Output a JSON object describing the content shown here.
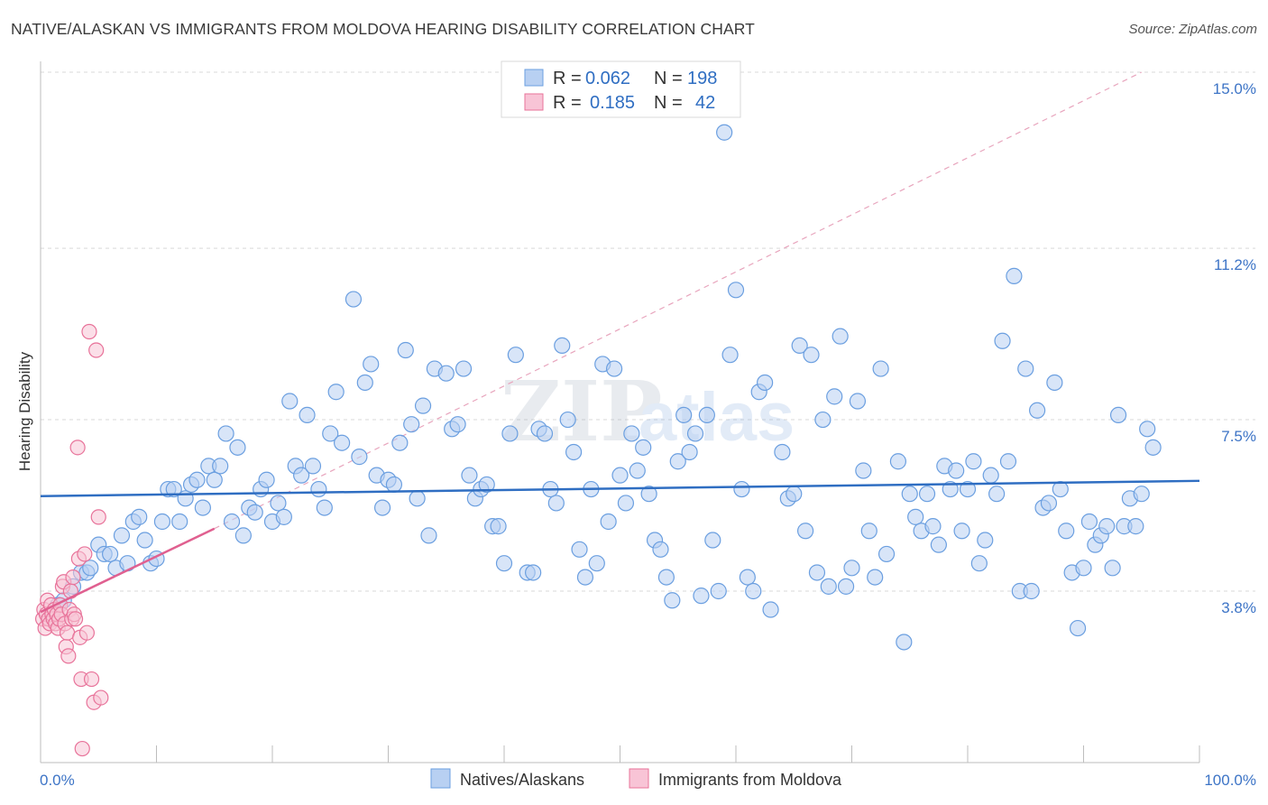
{
  "title": "NATIVE/ALASKAN VS IMMIGRANTS FROM MOLDOVA HEARING DISABILITY CORRELATION CHART",
  "source": "Source: ZipAtlas.com",
  "watermark": {
    "zip": "ZIP",
    "atlas": "atlas"
  },
  "chart_data": {
    "type": "scatter",
    "title": "NATIVE/ALASKAN VS IMMIGRANTS FROM MOLDOVA HEARING DISABILITY CORRELATION CHART",
    "xlabel": "",
    "ylabel": "Hearing Disability",
    "xlim": [
      0,
      100
    ],
    "ylim": [
      0,
      15.5
    ],
    "x_tick_labels": {
      "min": "0.0%",
      "max": "100.0%"
    },
    "y_ticks": [
      {
        "value": 3.8,
        "label": "3.8%"
      },
      {
        "value": 7.5,
        "label": "7.5%"
      },
      {
        "value": 11.2,
        "label": "11.2%"
      },
      {
        "value": 15.0,
        "label": "15.0%"
      }
    ],
    "grid": "horizontal-dashed",
    "legend_position": "top-center",
    "stats": [
      {
        "r_label": "R =",
        "r_value": "0.062",
        "n_label": "N =",
        "n_value": "198"
      },
      {
        "r_label": "R =",
        "r_value": "0.185",
        "n_label": "N =",
        "n_value": "42"
      }
    ],
    "series": [
      {
        "name": "Natives/Alaskans",
        "color": "#6b9fe0",
        "fill": "#b8d0f2",
        "trend": {
          "x": [
            0,
            100
          ],
          "y": [
            5.85,
            6.18
          ]
        },
        "points": [
          [
            1,
            3.3
          ],
          [
            1.5,
            3.5
          ],
          [
            2,
            3.6
          ],
          [
            2.8,
            3.9
          ],
          [
            3.5,
            4.2
          ],
          [
            4,
            4.2
          ],
          [
            4.3,
            4.3
          ],
          [
            5,
            4.8
          ],
          [
            5.5,
            4.6
          ],
          [
            6,
            4.6
          ],
          [
            6.5,
            4.3
          ],
          [
            7,
            5.0
          ],
          [
            7.5,
            4.4
          ],
          [
            8,
            5.3
          ],
          [
            8.5,
            5.4
          ],
          [
            9,
            4.9
          ],
          [
            9.5,
            4.4
          ],
          [
            10,
            4.5
          ],
          [
            10.5,
            5.3
          ],
          [
            11,
            6.0
          ],
          [
            11.5,
            6.0
          ],
          [
            12,
            5.3
          ],
          [
            12.5,
            5.8
          ],
          [
            13,
            6.1
          ],
          [
            13.5,
            6.2
          ],
          [
            14,
            5.6
          ],
          [
            14.5,
            6.5
          ],
          [
            15,
            6.2
          ],
          [
            15.5,
            6.5
          ],
          [
            16,
            7.2
          ],
          [
            16.5,
            5.3
          ],
          [
            17,
            6.9
          ],
          [
            17.5,
            5.0
          ],
          [
            18,
            5.6
          ],
          [
            18.5,
            5.5
          ],
          [
            19,
            6.0
          ],
          [
            19.5,
            6.2
          ],
          [
            20,
            5.3
          ],
          [
            20.5,
            5.7
          ],
          [
            21,
            5.4
          ],
          [
            21.5,
            7.9
          ],
          [
            22,
            6.5
          ],
          [
            22.5,
            6.3
          ],
          [
            23,
            7.6
          ],
          [
            23.5,
            6.5
          ],
          [
            24,
            6.0
          ],
          [
            24.5,
            5.6
          ],
          [
            25,
            7.2
          ],
          [
            25.5,
            8.1
          ],
          [
            26,
            7.0
          ],
          [
            27,
            10.1
          ],
          [
            27.5,
            6.7
          ],
          [
            28,
            8.3
          ],
          [
            28.5,
            8.7
          ],
          [
            29,
            6.3
          ],
          [
            29.5,
            5.6
          ],
          [
            30,
            6.2
          ],
          [
            30.5,
            6.1
          ],
          [
            31,
            7.0
          ],
          [
            31.5,
            9.0
          ],
          [
            32,
            7.4
          ],
          [
            32.5,
            5.8
          ],
          [
            33,
            7.8
          ],
          [
            33.5,
            5.0
          ],
          [
            34,
            8.6
          ],
          [
            35,
            8.5
          ],
          [
            35.5,
            7.3
          ],
          [
            36,
            7.4
          ],
          [
            36.5,
            8.6
          ],
          [
            37,
            6.3
          ],
          [
            37.5,
            5.8
          ],
          [
            38,
            6.0
          ],
          [
            38.5,
            6.1
          ],
          [
            39,
            5.2
          ],
          [
            39.5,
            5.2
          ],
          [
            40,
            4.4
          ],
          [
            40.5,
            7.2
          ],
          [
            41,
            8.9
          ],
          [
            42,
            4.2
          ],
          [
            42.5,
            4.2
          ],
          [
            43,
            7.3
          ],
          [
            43.5,
            7.2
          ],
          [
            44,
            6.0
          ],
          [
            44.5,
            5.7
          ],
          [
            45,
            9.1
          ],
          [
            45.5,
            7.5
          ],
          [
            46,
            6.8
          ],
          [
            46.5,
            4.7
          ],
          [
            47,
            4.1
          ],
          [
            47.5,
            6.0
          ],
          [
            48,
            4.4
          ],
          [
            48.5,
            8.7
          ],
          [
            49,
            5.3
          ],
          [
            49.5,
            8.6
          ],
          [
            50,
            6.3
          ],
          [
            50.5,
            5.7
          ],
          [
            51,
            7.2
          ],
          [
            51.5,
            6.4
          ],
          [
            52,
            6.9
          ],
          [
            52.5,
            5.9
          ],
          [
            53,
            4.9
          ],
          [
            53.5,
            4.7
          ],
          [
            54,
            4.1
          ],
          [
            54.5,
            3.6
          ],
          [
            55,
            6.6
          ],
          [
            55.5,
            7.6
          ],
          [
            56,
            6.8
          ],
          [
            56.5,
            7.2
          ],
          [
            57,
            3.7
          ],
          [
            57.5,
            7.6
          ],
          [
            58,
            4.9
          ],
          [
            58.5,
            3.8
          ],
          [
            59,
            13.7
          ],
          [
            59.5,
            8.9
          ],
          [
            60,
            10.3
          ],
          [
            60.5,
            6.0
          ],
          [
            61,
            4.1
          ],
          [
            61.5,
            3.8
          ],
          [
            62,
            8.1
          ],
          [
            62.5,
            8.3
          ],
          [
            63,
            3.4
          ],
          [
            64,
            6.8
          ],
          [
            64.5,
            5.8
          ],
          [
            65,
            5.9
          ],
          [
            65.5,
            9.1
          ],
          [
            66,
            5.1
          ],
          [
            66.5,
            8.9
          ],
          [
            67,
            4.2
          ],
          [
            67.5,
            7.5
          ],
          [
            68,
            3.9
          ],
          [
            68.5,
            8.0
          ],
          [
            69,
            9.3
          ],
          [
            69.5,
            3.9
          ],
          [
            70,
            4.3
          ],
          [
            70.5,
            7.9
          ],
          [
            71,
            6.4
          ],
          [
            71.5,
            5.1
          ],
          [
            72,
            4.1
          ],
          [
            72.5,
            8.6
          ],
          [
            73,
            4.6
          ],
          [
            74,
            6.6
          ],
          [
            74.5,
            2.7
          ],
          [
            75,
            5.9
          ],
          [
            75.5,
            5.4
          ],
          [
            76,
            5.1
          ],
          [
            76.5,
            5.9
          ],
          [
            77,
            5.2
          ],
          [
            77.5,
            4.8
          ],
          [
            78,
            6.5
          ],
          [
            78.5,
            6.0
          ],
          [
            79,
            6.4
          ],
          [
            79.5,
            5.1
          ],
          [
            80,
            6.0
          ],
          [
            80.5,
            6.6
          ],
          [
            81,
            4.4
          ],
          [
            81.5,
            4.9
          ],
          [
            82,
            6.3
          ],
          [
            82.5,
            5.9
          ],
          [
            83,
            9.2
          ],
          [
            83.5,
            6.6
          ],
          [
            84,
            10.6
          ],
          [
            84.5,
            3.8
          ],
          [
            85,
            8.6
          ],
          [
            85.5,
            3.8
          ],
          [
            86,
            7.7
          ],
          [
            86.5,
            5.6
          ],
          [
            87,
            5.7
          ],
          [
            87.5,
            8.3
          ],
          [
            88,
            6.0
          ],
          [
            88.5,
            5.1
          ],
          [
            89,
            4.2
          ],
          [
            89.5,
            3.0
          ],
          [
            90,
            4.3
          ],
          [
            90.5,
            5.3
          ],
          [
            91,
            4.8
          ],
          [
            91.5,
            5.0
          ],
          [
            92,
            5.2
          ],
          [
            92.5,
            4.3
          ],
          [
            93,
            7.6
          ],
          [
            93.5,
            5.2
          ],
          [
            94,
            5.8
          ],
          [
            94.5,
            5.2
          ],
          [
            95,
            5.9
          ],
          [
            95.5,
            7.3
          ],
          [
            96,
            6.9
          ]
        ]
      },
      {
        "name": "Immigrants from Moldova",
        "color": "#e8739a",
        "fill": "#f8c4d6",
        "trend": {
          "x": [
            0,
            15
          ],
          "y": [
            3.35,
            5.15
          ]
        },
        "trend_extension": {
          "x": [
            15,
            95
          ],
          "y": [
            5.15,
            15.0
          ]
        },
        "points": [
          [
            0.2,
            3.2
          ],
          [
            0.3,
            3.4
          ],
          [
            0.4,
            3.0
          ],
          [
            0.5,
            3.3
          ],
          [
            0.6,
            3.6
          ],
          [
            0.7,
            3.2
          ],
          [
            0.8,
            3.1
          ],
          [
            0.9,
            3.5
          ],
          [
            1.0,
            3.3
          ],
          [
            1.1,
            3.2
          ],
          [
            1.2,
            3.4
          ],
          [
            1.3,
            3.1
          ],
          [
            1.4,
            3.3
          ],
          [
            1.5,
            3.0
          ],
          [
            1.6,
            3.2
          ],
          [
            1.7,
            3.5
          ],
          [
            1.8,
            3.3
          ],
          [
            1.9,
            3.9
          ],
          [
            2.0,
            4.0
          ],
          [
            2.1,
            3.1
          ],
          [
            2.2,
            2.6
          ],
          [
            2.3,
            2.9
          ],
          [
            2.4,
            2.4
          ],
          [
            2.5,
            3.4
          ],
          [
            2.6,
            3.8
          ],
          [
            2.7,
            3.2
          ],
          [
            2.8,
            4.1
          ],
          [
            2.9,
            3.3
          ],
          [
            3.0,
            3.2
          ],
          [
            3.2,
            6.9
          ],
          [
            3.3,
            4.5
          ],
          [
            3.4,
            2.8
          ],
          [
            3.5,
            1.9
          ],
          [
            3.6,
            0.4
          ],
          [
            3.8,
            4.6
          ],
          [
            4.0,
            2.9
          ],
          [
            4.2,
            9.4
          ],
          [
            4.4,
            1.9
          ],
          [
            4.6,
            1.4
          ],
          [
            4.8,
            9.0
          ],
          [
            5.0,
            5.4
          ],
          [
            5.2,
            1.5
          ]
        ]
      }
    ]
  },
  "legend_bottom": [
    "Natives/Alaskans",
    "Immigrants from Moldova"
  ]
}
